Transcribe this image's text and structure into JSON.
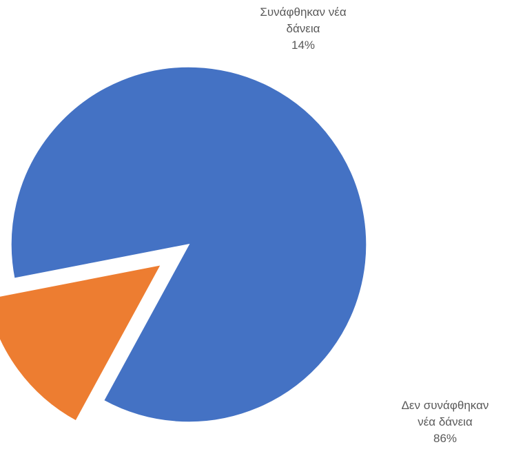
{
  "chart_data": {
    "type": "pie",
    "categories": [
      "Δεν συνάφθηκαν νέα δάνεια",
      "Συνάφθηκαν νέα δάνεια"
    ],
    "values": [
      86,
      14
    ],
    "colors": [
      "#4472C4",
      "#ED7D31"
    ],
    "exploded": [
      false,
      true
    ],
    "data_labels": [
      {
        "line1": "Δεν συνάφθηκαν",
        "line2": "νέα δάνεια",
        "value": "86%"
      },
      {
        "line1": "Συνάφθηκαν νέα",
        "line2": "δάνεια",
        "value": "14%"
      }
    ],
    "legend": "none"
  }
}
